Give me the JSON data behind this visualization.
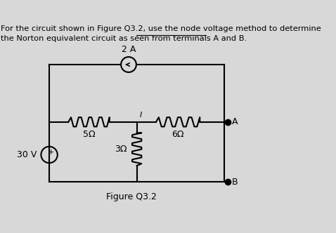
{
  "bg_color": "#d8d8d8",
  "text_color": "#000000",
  "figure_label": "Figure Q3.2",
  "current_label": "2 A",
  "resistor_5_label": "5Ω",
  "resistor_3_label": "3Ω",
  "resistor_6_label": "6Ω",
  "voltage_label": "30 V",
  "node_i_label": "I",
  "terminal_a_label": "A",
  "terminal_b_label": "B"
}
